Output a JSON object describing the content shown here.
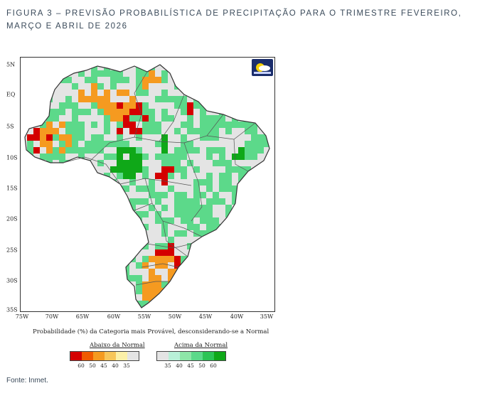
{
  "caption": "FIGURA 3 – PREVISÃO PROBABILÍSTICA DE PRECIPITAÇÃO PARA O TRIMESTRE FEVEREIRO, MARÇO E ABRIL DE 2026",
  "source": "Fonte: Inmet.",
  "map": {
    "lat_ticks": [
      "5N",
      "EQ",
      "5S",
      "10S",
      "15S",
      "20S",
      "25S",
      "30S",
      "35S"
    ],
    "lon_ticks": [
      "75W",
      "70W",
      "65W",
      "60W",
      "55W",
      "50W",
      "45W",
      "40W",
      "35W"
    ],
    "probability_label": "Probabilidade (%) da Categoria mais Provável, desconsiderando-se a Normal",
    "legend_below_title": "Abaixo da Normal",
    "legend_above_title": "Acima da Normal",
    "legend_below_values": [
      "60",
      "50",
      "45",
      "40",
      "35"
    ],
    "legend_above_values": [
      "35",
      "40",
      "45",
      "50",
      "60"
    ],
    "legend_below_colors": [
      "#d40000",
      "#f05a00",
      "#f59a20",
      "#f7c65a",
      "#fbf0a8",
      "#e4e4e4"
    ],
    "legend_above_colors": [
      "#e4e4e4",
      "#b8f0d8",
      "#8ee6a8",
      "#5cd98a",
      "#2cc455",
      "#0fa818"
    ],
    "colors": {
      "below_strong": "#d40000",
      "below": "#f59a20",
      "neutral": "#e4e4e4",
      "above": "#5cd98a",
      "above_strong": "#0fa818"
    }
  }
}
